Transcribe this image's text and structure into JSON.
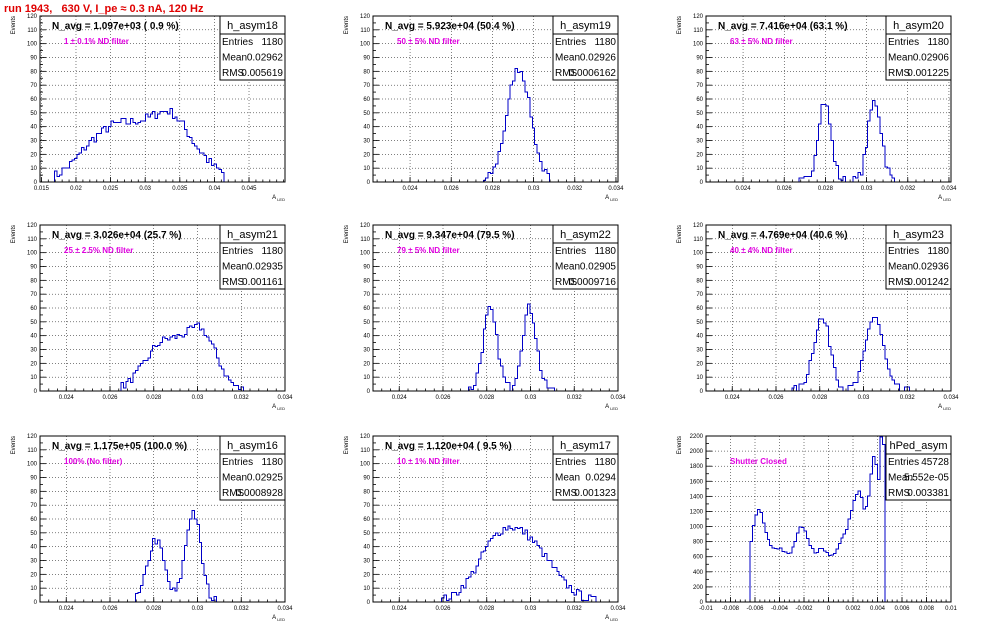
{
  "header": {
    "title": "run 1943,   630 V, I_pe ≈ 0.3 nA, 120 Hz",
    "title_color": "#e00000"
  },
  "colors": {
    "histogram": "#0000c8",
    "filter_label": "#e000e0"
  },
  "stat_labels": {
    "entries": "Entries",
    "mean": "Mean",
    "rms": "RMS"
  },
  "chart_data": [
    {
      "type": "bar",
      "name": "h_asym18",
      "ylabel": "Events",
      "xlabel": "A_LED",
      "xlim": [
        0.0148,
        0.0502
      ],
      "ylim": [
        0,
        120
      ],
      "grid": true,
      "xticks": [
        "0.015",
        "0.02",
        "0.025",
        "0.03",
        "0.035",
        "0.04",
        "0.045"
      ],
      "xtick_values": [
        0.015,
        0.02,
        0.025,
        0.03,
        0.035,
        0.04,
        0.045
      ],
      "yticks": [
        0,
        10,
        20,
        30,
        40,
        50,
        60,
        70,
        80,
        90,
        100,
        110,
        120
      ],
      "n_avg": "N_avg = 1.097e+03 ( 0.9 %)",
      "filter": "1 ± 0.1% ND filter",
      "stats": {
        "entries": "1180",
        "mean": "0.02962",
        "rms": "0.005619"
      },
      "peaks": [
        [
          0.0225,
          16,
          0.0032
        ],
        [
          0.026,
          20,
          0.0035
        ],
        [
          0.03,
          25,
          0.0035
        ],
        [
          0.0337,
          29,
          0.0024
        ],
        [
          0.0376,
          15,
          0.0027
        ]
      ],
      "xrange": [
        0.0165,
        0.0415
      ],
      "noise": 7
    },
    {
      "type": "bar",
      "name": "h_asym19",
      "ylabel": "Events",
      "xlabel": "A_LED",
      "xlim": [
        0.0222,
        0.0341
      ],
      "ylim": [
        0,
        120
      ],
      "grid": true,
      "xticks": [
        "0.024",
        "0.026",
        "0.028",
        "0.03",
        "0.032",
        "0.034"
      ],
      "xtick_values": [
        0.024,
        0.026,
        0.028,
        0.03,
        0.032,
        0.034
      ],
      "yticks": [
        0,
        10,
        20,
        30,
        40,
        50,
        60,
        70,
        80,
        90,
        100,
        110,
        120
      ],
      "n_avg": "N_avg = 5.923e+04 (50.4 %)",
      "filter": "50 ± 5% ND filter",
      "stats": {
        "entries": "1180",
        "mean": "0.02926",
        "rms": "0.0006162"
      },
      "peaks": [
        [
          0.02928,
          82,
          0.00058
        ]
      ],
      "xrange": [
        0.0275,
        0.0308
      ],
      "noise": 6
    },
    {
      "type": "bar",
      "name": "h_asym20",
      "ylabel": "Events",
      "xlabel": "A_LED",
      "xlim": [
        0.0222,
        0.0341
      ],
      "ylim": [
        0,
        120
      ],
      "grid": true,
      "xticks": [
        "0.024",
        "0.026",
        "0.028",
        "0.03",
        "0.032",
        "0.034"
      ],
      "xtick_values": [
        0.024,
        0.026,
        0.028,
        0.03,
        0.032,
        0.034
      ],
      "yticks": [
        0,
        10,
        20,
        30,
        40,
        50,
        60,
        70,
        80,
        90,
        100,
        110,
        120
      ],
      "n_avg": "N_avg = 7.416e+04 (63.1 %)",
      "filter": "63 ± 5% ND filter",
      "stats": {
        "entries": "1180",
        "mean": "0.02906",
        "rms": "0.001225"
      },
      "peaks": [
        [
          0.02795,
          58,
          0.00032
        ],
        [
          0.0304,
          58,
          0.00033
        ]
      ],
      "xrange": [
        0.0267,
        0.0317
      ],
      "noise": 8
    },
    {
      "type": "bar",
      "name": "h_asym21",
      "ylabel": "Events",
      "xlabel": "A_LED",
      "xlim": [
        0.0228,
        0.034
      ],
      "ylim": [
        0,
        120
      ],
      "grid": true,
      "xticks": [
        "0.024",
        "0.026",
        "0.028",
        "0.03",
        "0.032",
        "0.034"
      ],
      "xtick_values": [
        0.024,
        0.026,
        0.028,
        0.03,
        0.032,
        0.034
      ],
      "yticks": [
        0,
        10,
        20,
        30,
        40,
        50,
        60,
        70,
        80,
        90,
        100,
        110,
        120
      ],
      "n_avg": "N_avg = 3.026e+04 (25.7 %)",
      "filter": "25 ± 2.5% ND filter",
      "stats": {
        "entries": "1180",
        "mean": "0.02935",
        "rms": "0.001161"
      },
      "peaks": [
        [
          0.0285,
          35,
          0.0009
        ],
        [
          0.0302,
          39,
          0.0007
        ]
      ],
      "xrange": [
        0.0265,
        0.0322
      ],
      "noise": 6
    },
    {
      "type": "bar",
      "name": "h_asym22",
      "ylabel": "Events",
      "xlabel": "A_LED",
      "xlim": [
        0.0228,
        0.034
      ],
      "ylim": [
        0,
        120
      ],
      "grid": true,
      "xticks": [
        "0.024",
        "0.026",
        "0.028",
        "0.03",
        "0.032",
        "0.034"
      ],
      "xtick_values": [
        0.024,
        0.026,
        0.028,
        0.03,
        0.032,
        0.034
      ],
      "yticks": [
        0,
        10,
        20,
        30,
        40,
        50,
        60,
        70,
        80,
        90,
        100,
        110,
        120
      ],
      "n_avg": "N_avg = 9.347e+04 (79.5 %)",
      "filter": "79 ± 5% ND filter",
      "stats": {
        "entries": "1180",
        "mean": "0.02905",
        "rms": "0.0009716"
      },
      "peaks": [
        [
          0.02815,
          58,
          0.00033
        ],
        [
          0.02995,
          60,
          0.00033
        ]
      ],
      "xrange": [
        0.0268,
        0.0314
      ],
      "noise": 7
    },
    {
      "type": "bar",
      "name": "h_asym23",
      "ylabel": "Events",
      "xlabel": "A_LED",
      "xlim": [
        0.0228,
        0.034
      ],
      "ylim": [
        0,
        120
      ],
      "grid": true,
      "xticks": [
        "0.024",
        "0.026",
        "0.028",
        "0.03",
        "0.032",
        "0.034"
      ],
      "xtick_values": [
        0.024,
        0.026,
        0.028,
        0.03,
        0.032,
        0.034
      ],
      "yticks": [
        0,
        10,
        20,
        30,
        40,
        50,
        60,
        70,
        80,
        90,
        100,
        110,
        120
      ],
      "n_avg": "N_avg = 4.769e+04 (40.6 %)",
      "filter": "40 ± 4% ND filter",
      "stats": {
        "entries": "1180",
        "mean": "0.02936",
        "rms": "0.001242"
      },
      "peaks": [
        [
          0.0281,
          52,
          0.0004
        ],
        [
          0.0305,
          54,
          0.0004
        ]
      ],
      "xrange": [
        0.0266,
        0.0321
      ],
      "noise": 7
    },
    {
      "type": "bar",
      "name": "h_asym16",
      "ylabel": "Events",
      "xlabel": "A_LED",
      "xlim": [
        0.0228,
        0.034
      ],
      "ylim": [
        0,
        120
      ],
      "grid": true,
      "xticks": [
        "0.024",
        "0.026",
        "0.028",
        "0.03",
        "0.032",
        "0.034"
      ],
      "xtick_values": [
        0.024,
        0.026,
        0.028,
        0.03,
        0.032,
        0.034
      ],
      "yticks": [
        0,
        10,
        20,
        30,
        40,
        50,
        60,
        70,
        80,
        90,
        100,
        110,
        120
      ],
      "n_avg": "N_avg = 1.175e+05 (100.0 %)",
      "filter": "100% (No filter)",
      "stats": {
        "entries": "1180",
        "mean": "0.02925",
        "rms": "0.0008928"
      },
      "peaks": [
        [
          0.0281,
          45,
          0.00038
        ],
        [
          0.0298,
          65,
          0.00035
        ]
      ],
      "xrange": [
        0.0268,
        0.0312
      ],
      "noise": 7
    },
    {
      "type": "bar",
      "name": "h_asym17",
      "ylabel": "Events",
      "xlabel": "A_LED",
      "xlim": [
        0.0228,
        0.034
      ],
      "ylim": [
        0,
        120
      ],
      "grid": true,
      "xticks": [
        "0.024",
        "0.026",
        "0.028",
        "0.03",
        "0.032",
        "0.034"
      ],
      "xtick_values": [
        0.024,
        0.026,
        0.028,
        0.03,
        0.032,
        0.034
      ],
      "yticks": [
        0,
        10,
        20,
        30,
        40,
        50,
        60,
        70,
        80,
        90,
        100,
        110,
        120
      ],
      "n_avg": "N_avg = 1.120e+04 ( 9.5 %)",
      "filter": "10 ± 1% ND filter",
      "stats": {
        "entries": "1180",
        "mean": "0.0294",
        "rms": "0.001323"
      },
      "peaks": [
        [
          0.0285,
          38,
          0.001
        ],
        [
          0.0301,
          34,
          0.0011
        ]
      ],
      "xrange": [
        0.0258,
        0.033
      ],
      "noise": 6
    },
    {
      "type": "bar",
      "name": "hPed_asym",
      "ylabel": "Events",
      "xlabel": "",
      "xlim": [
        -0.01,
        0.01
      ],
      "ylim": [
        0,
        2200
      ],
      "grid": true,
      "xticks": [
        "-0.01",
        "-0.008",
        "-0.006",
        "-0.004",
        "-0.002",
        "0",
        "0.002",
        "0.004",
        "0.006",
        "0.008",
        "0.01"
      ],
      "xtick_values": [
        -0.01,
        -0.008,
        -0.006,
        -0.004,
        -0.002,
        0,
        0.002,
        0.004,
        0.006,
        0.008,
        0.01
      ],
      "yticks": [
        0,
        200,
        400,
        600,
        800,
        1000,
        1200,
        1400,
        1600,
        1800,
        2000,
        2200
      ],
      "n_avg": "",
      "filter": "Shutter Closed",
      "stats": {
        "entries": "45728",
        "mean": "5.552e-05",
        "rms": "0.003381"
      },
      "peaks": [
        [
          -0.0058,
          1100,
          0.0006
        ],
        [
          -0.0041,
          700,
          0.0009
        ],
        [
          -0.0022,
          830,
          0.0006
        ],
        [
          -0.0005,
          680,
          0.0008
        ],
        [
          0.001,
          520,
          0.0005
        ],
        [
          0.0024,
          1450,
          0.0007
        ],
        [
          0.0038,
          1700,
          0.0004
        ],
        [
          0.0044,
          2150,
          0.00015
        ]
      ],
      "xrange": [
        -0.0063,
        0.0047
      ],
      "noise": 60
    }
  ]
}
